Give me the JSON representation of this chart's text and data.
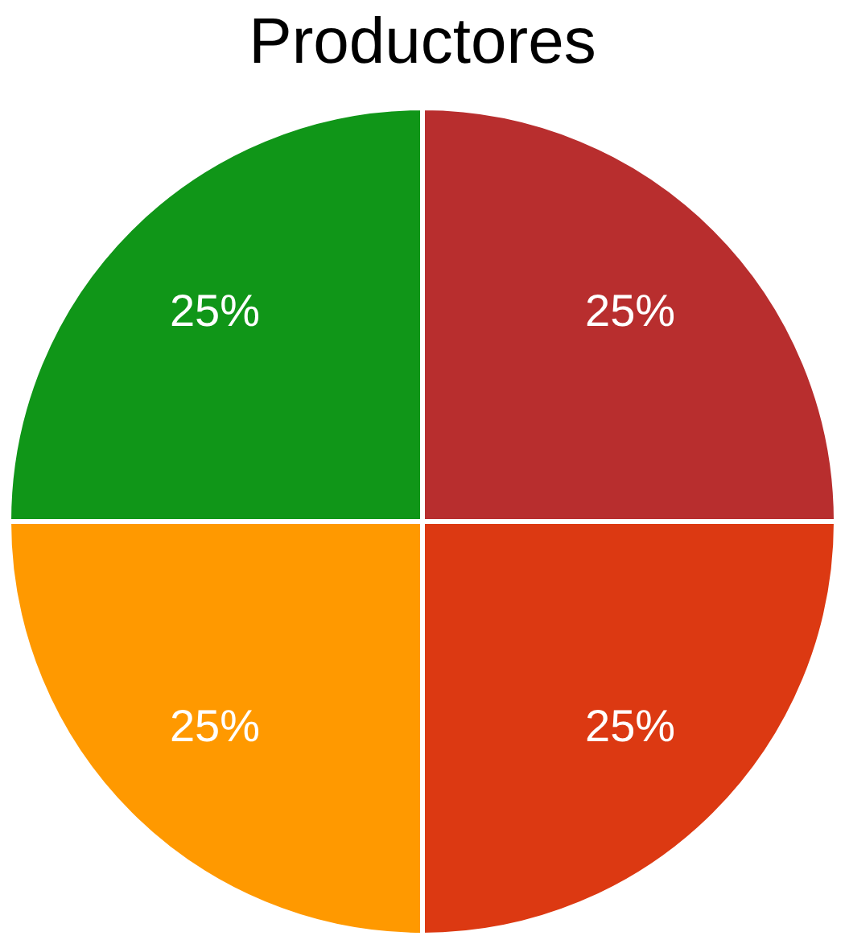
{
  "chart_data": {
    "type": "pie",
    "title": "Productores",
    "categories": [
      null,
      null,
      null,
      null
    ],
    "values": [
      25,
      25,
      25,
      25
    ],
    "colors": [
      "#b82e2e",
      "#dc3912",
      "#ff9900",
      "#109618"
    ],
    "value_labels": [
      "25%",
      "25%",
      "25%",
      "25%"
    ],
    "legend": false
  }
}
